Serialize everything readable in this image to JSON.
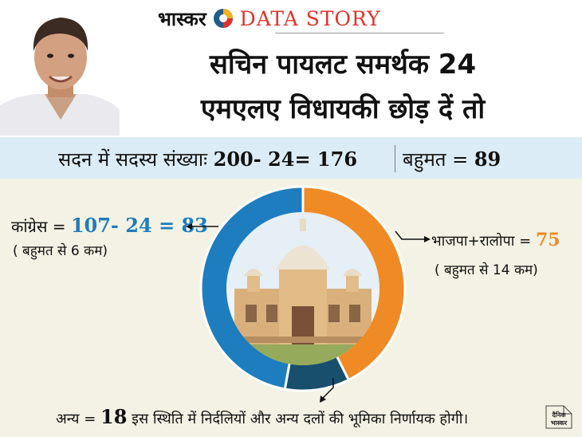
{
  "brand": {
    "hindi": "भास्कर",
    "english": "DATA STORY"
  },
  "title": {
    "line1": "सचिन पायलट समर्थक 24",
    "line2": "एमएलए विधायकी छोड़ दें तो"
  },
  "band": {
    "left_label": "सदन में सदस्य संख्याः ",
    "left_value": "200- 24= 176",
    "right_label": "बहुमत = ",
    "right_value": "89"
  },
  "chart_data": {
    "type": "pie",
    "categories": [
      "कांग्रेस",
      "भाजपा+रालोपा",
      "अन्य"
    ],
    "values": [
      83,
      75,
      18
    ],
    "colors": [
      "#1d7dbf",
      "#ef8a25",
      "#174f6c"
    ],
    "hole": "photo"
  },
  "labels": {
    "congress": {
      "name": "कांग्रेस = ",
      "value": "107- 24 = 83",
      "note": "( बहुमत से 6 कम)"
    },
    "bjp": {
      "name": "भाजपा+रालोपा = ",
      "value": "75",
      "note": "( बहुमत से 14 कम)"
    },
    "others": {
      "name": "अन्य = ",
      "value": "18",
      "note": " इस स्थिति में निर्दलियों और अन्य दलों की भूमिका निर्णायक होगी।"
    }
  },
  "stamp": {
    "line1": "दैनिक",
    "line2": "भास्कर"
  },
  "icons": [
    "portrait-photo",
    "pie-logo-icon",
    "building-photo",
    "arrow-icon"
  ]
}
